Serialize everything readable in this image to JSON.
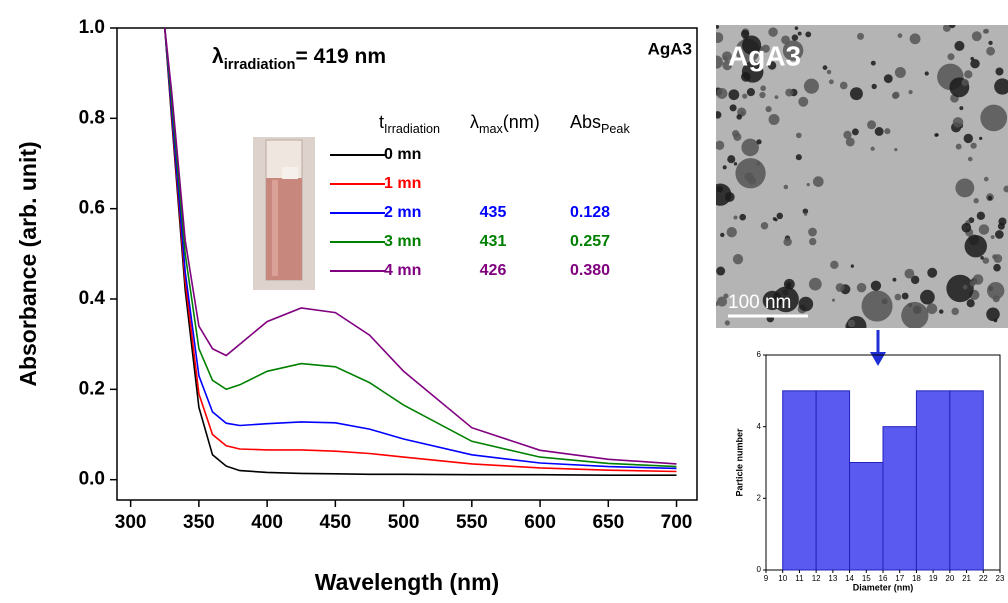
{
  "chart_data": [
    {
      "type": "line",
      "xlabel": "Wavelength (nm)",
      "ylabel": "Absorbance (arb. unit)",
      "annotation": {
        "main": "λ",
        "sub": "irradiation",
        "after": "= 419 nm"
      },
      "sample_label": "AgA3",
      "table_headers": [
        {
          "main": "t",
          "sub": "Irradiation"
        },
        {
          "main": "λ",
          "sub": "max",
          "after": "(nm)"
        },
        {
          "main": "Abs",
          "sub": "Peak"
        }
      ],
      "x": [
        325,
        330,
        340,
        350,
        360,
        370,
        380,
        400,
        425,
        450,
        475,
        500,
        550,
        600,
        650,
        700
      ],
      "series": [
        {
          "name": "0 mn",
          "color": "#000000",
          "values": [
            1.0,
            0.8,
            0.42,
            0.16,
            0.055,
            0.03,
            0.02,
            0.016,
            0.014,
            0.013,
            0.012,
            0.012,
            0.011,
            0.011,
            0.01,
            0.01
          ]
        },
        {
          "name": "1 mn",
          "color": "#ff0000",
          "values": [
            1.0,
            0.81,
            0.44,
            0.19,
            0.1,
            0.075,
            0.068,
            0.066,
            0.066,
            0.063,
            0.058,
            0.05,
            0.035,
            0.026,
            0.021,
            0.018
          ]
        },
        {
          "name": "2 mn",
          "color": "#0000ff",
          "values": [
            1.0,
            0.82,
            0.46,
            0.23,
            0.15,
            0.125,
            0.12,
            0.124,
            0.128,
            0.126,
            0.112,
            0.09,
            0.055,
            0.037,
            0.029,
            0.025
          ],
          "lambda_max": 435,
          "abs_peak": 0.128
        },
        {
          "name": "3 mn",
          "color": "#008000",
          "values": [
            1.0,
            0.84,
            0.5,
            0.29,
            0.22,
            0.2,
            0.21,
            0.24,
            0.257,
            0.25,
            0.215,
            0.165,
            0.085,
            0.05,
            0.036,
            0.029
          ],
          "lambda_max": 431,
          "abs_peak": 0.257
        },
        {
          "name": "4 mn",
          "color": "#800080",
          "values": [
            1.0,
            0.86,
            0.53,
            0.34,
            0.29,
            0.275,
            0.3,
            0.35,
            0.38,
            0.37,
            0.32,
            0.24,
            0.115,
            0.065,
            0.045,
            0.035
          ],
          "lambda_max": 426,
          "abs_peak": {
            "value": 0.38,
            "label": "0.380"
          }
        }
      ],
      "xlim": [
        290,
        715
      ],
      "xticks": [
        300,
        350,
        400,
        450,
        500,
        550,
        600,
        650,
        700
      ],
      "ylim": [
        -0.045,
        1.0
      ],
      "yticks": [
        {
          "value": 0,
          "label": "0.0"
        },
        0.2,
        0.4,
        0.6,
        0.8,
        {
          "value": 1,
          "label": "1.0"
        }
      ]
    },
    {
      "type": "histogram",
      "xlabel": "Diameter (nm)",
      "ylabel": "Particle number",
      "bins": [
        10,
        12,
        14,
        16,
        18,
        20,
        22
      ],
      "values": [
        5,
        5,
        3,
        4,
        5,
        5
      ],
      "color": "#5a5af0",
      "xlim": [
        9,
        23
      ],
      "xticks": [
        9,
        10,
        11,
        12,
        13,
        14,
        15,
        16,
        17,
        18,
        19,
        20,
        21,
        22,
        23
      ],
      "ylim": [
        0,
        6
      ],
      "yticks": [
        0,
        2,
        4,
        6
      ]
    }
  ],
  "image": {
    "label": "AgA3",
    "scale_bar": "100 nm"
  }
}
